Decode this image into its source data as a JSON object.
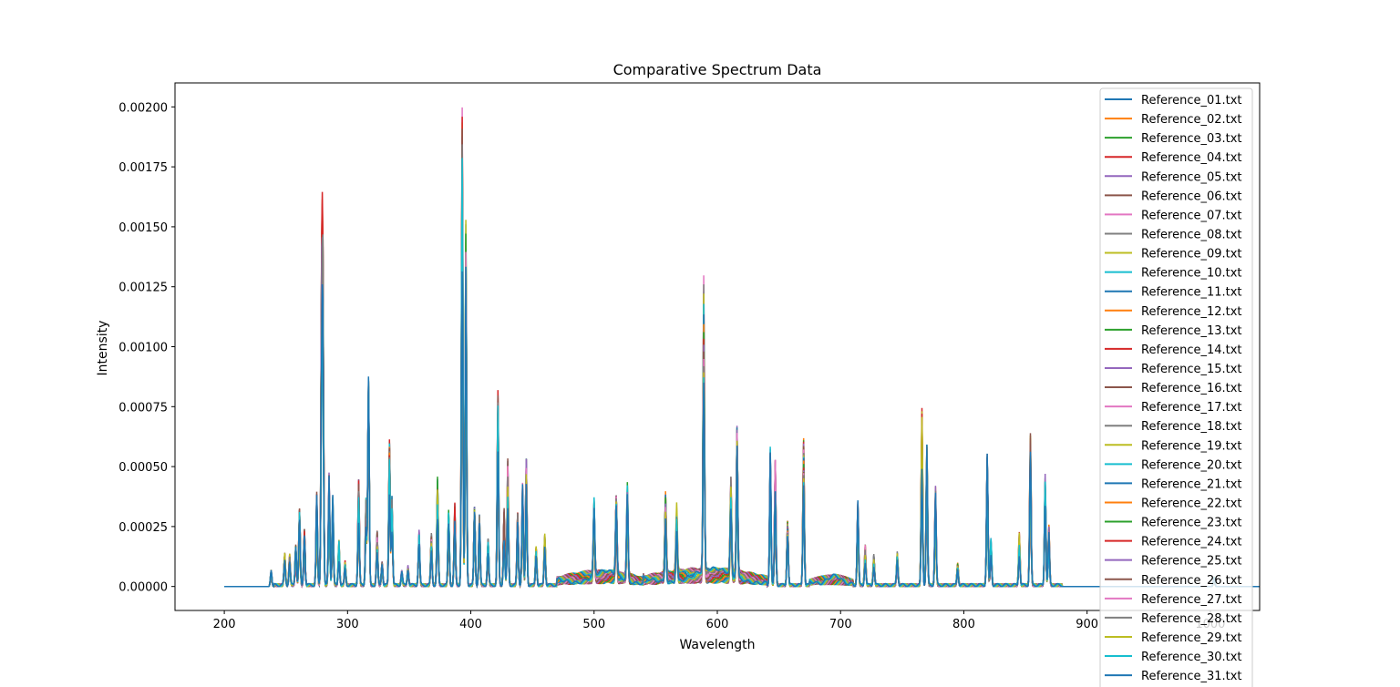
{
  "chart_data": {
    "type": "line",
    "title": "Comparative Spectrum Data",
    "xlabel": "Wavelength",
    "ylabel": "Intensity",
    "xlim": [
      160,
      1040
    ],
    "ylim": [
      -0.0001,
      0.0021
    ],
    "x_ticks": [
      200,
      300,
      400,
      500,
      600,
      700,
      800,
      900,
      1000
    ],
    "x_tick_labels": [
      "200",
      "300",
      "400",
      "500",
      "600",
      "700",
      "800",
      "900",
      "1000"
    ],
    "y_ticks": [
      0.0,
      0.00025,
      0.0005,
      0.00075,
      0.001,
      0.00125,
      0.0015,
      0.00175,
      0.002
    ],
    "y_tick_labels": [
      "0.00000",
      "0.00025",
      "0.00050",
      "0.00075",
      "0.00100",
      "0.00125",
      "0.00150",
      "0.00175",
      "0.00200"
    ],
    "grid": false,
    "legend_position": "upper-right",
    "series_colors": [
      "#1f77b4",
      "#ff7f0e",
      "#2ca02c",
      "#d62728",
      "#9467bd",
      "#8c564b",
      "#e377c2",
      "#7f7f7f",
      "#bcbd22",
      "#17becf"
    ],
    "series": [
      {
        "name": "Reference_01.txt"
      },
      {
        "name": "Reference_02.txt"
      },
      {
        "name": "Reference_03.txt"
      },
      {
        "name": "Reference_04.txt"
      },
      {
        "name": "Reference_05.txt"
      },
      {
        "name": "Reference_06.txt"
      },
      {
        "name": "Reference_07.txt"
      },
      {
        "name": "Reference_08.txt"
      },
      {
        "name": "Reference_09.txt"
      },
      {
        "name": "Reference_10.txt"
      },
      {
        "name": "Reference_11.txt"
      },
      {
        "name": "Reference_12.txt"
      },
      {
        "name": "Reference_13.txt"
      },
      {
        "name": "Reference_14.txt"
      },
      {
        "name": "Reference_15.txt"
      },
      {
        "name": "Reference_16.txt"
      },
      {
        "name": "Reference_17.txt"
      },
      {
        "name": "Reference_18.txt"
      },
      {
        "name": "Reference_19.txt"
      },
      {
        "name": "Reference_20.txt"
      },
      {
        "name": "Reference_21.txt"
      },
      {
        "name": "Reference_22.txt"
      },
      {
        "name": "Reference_23.txt"
      },
      {
        "name": "Reference_24.txt"
      },
      {
        "name": "Reference_25.txt"
      },
      {
        "name": "Reference_26.txt"
      },
      {
        "name": "Reference_27.txt"
      },
      {
        "name": "Reference_28.txt"
      },
      {
        "name": "Reference_29.txt"
      },
      {
        "name": "Reference_30.txt"
      },
      {
        "name": "Reference_31.txt"
      }
    ],
    "wavelength_range": [
      200,
      1040
    ],
    "spectral_peaks": [
      {
        "x": 238,
        "y": 7e-05
      },
      {
        "x": 249,
        "y": 0.00014
      },
      {
        "x": 253,
        "y": 0.00013
      },
      {
        "x": 258,
        "y": 0.00017
      },
      {
        "x": 261,
        "y": 0.00033
      },
      {
        "x": 265,
        "y": 0.00024
      },
      {
        "x": 275,
        "y": 0.00039
      },
      {
        "x": 279,
        "y": 0.0012
      },
      {
        "x": 280,
        "y": 0.00129
      },
      {
        "x": 285,
        "y": 0.00047
      },
      {
        "x": 288,
        "y": 0.00038
      },
      {
        "x": 293,
        "y": 0.00019
      },
      {
        "x": 298,
        "y": 0.0001
      },
      {
        "x": 309,
        "y": 0.00045
      },
      {
        "x": 315,
        "y": 0.00037
      },
      {
        "x": 317,
        "y": 0.0009
      },
      {
        "x": 324,
        "y": 0.00023
      },
      {
        "x": 328,
        "y": 0.0001
      },
      {
        "x": 334,
        "y": 0.00061
      },
      {
        "x": 336,
        "y": 0.00038
      },
      {
        "x": 344,
        "y": 6e-05
      },
      {
        "x": 349,
        "y": 8e-05
      },
      {
        "x": 358,
        "y": 0.00023
      },
      {
        "x": 368,
        "y": 0.00022
      },
      {
        "x": 373,
        "y": 0.00045
      },
      {
        "x": 382,
        "y": 0.00031
      },
      {
        "x": 387,
        "y": 0.00035
      },
      {
        "x": 393,
        "y": 0.002
      },
      {
        "x": 396,
        "y": 0.00155
      },
      {
        "x": 403,
        "y": 0.00037
      },
      {
        "x": 407,
        "y": 0.0003
      },
      {
        "x": 414,
        "y": 0.0002
      },
      {
        "x": 422,
        "y": 0.00082
      },
      {
        "x": 427,
        "y": 0.00032
      },
      {
        "x": 430,
        "y": 0.00053
      },
      {
        "x": 438,
        "y": 0.00032
      },
      {
        "x": 442,
        "y": 0.00044
      },
      {
        "x": 445,
        "y": 0.00055
      },
      {
        "x": 453,
        "y": 0.00017
      },
      {
        "x": 460,
        "y": 0.00022
      },
      {
        "x": 500,
        "y": 0.00034
      },
      {
        "x": 518,
        "y": 0.00037
      },
      {
        "x": 527,
        "y": 0.00039
      },
      {
        "x": 558,
        "y": 0.00035
      },
      {
        "x": 567,
        "y": 0.00029
      },
      {
        "x": 589,
        "y": 0.00128
      },
      {
        "x": 611,
        "y": 0.0004
      },
      {
        "x": 616,
        "y": 0.00066
      },
      {
        "x": 643,
        "y": 0.00058
      },
      {
        "x": 647,
        "y": 0.00053
      },
      {
        "x": 657,
        "y": 0.00028
      },
      {
        "x": 670,
        "y": 0.00062
      },
      {
        "x": 714,
        "y": 0.00036
      },
      {
        "x": 720,
        "y": 0.00017
      },
      {
        "x": 727,
        "y": 0.00013
      },
      {
        "x": 746,
        "y": 0.00014
      },
      {
        "x": 766,
        "y": 0.00076
      },
      {
        "x": 770,
        "y": 0.00061
      },
      {
        "x": 777,
        "y": 0.00042
      },
      {
        "x": 795,
        "y": 9e-05
      },
      {
        "x": 819,
        "y": 0.00055
      },
      {
        "x": 822,
        "y": 0.0002
      },
      {
        "x": 845,
        "y": 0.00022
      },
      {
        "x": 854,
        "y": 0.00064
      },
      {
        "x": 866,
        "y": 0.00047
      },
      {
        "x": 869,
        "y": 0.00025
      },
      {
        "x": 1003,
        "y": 4e-05
      }
    ],
    "continuum_bands": [
      {
        "from": 470,
        "to": 540,
        "y": 6e-05
      },
      {
        "from": 540,
        "to": 640,
        "y": 7e-05
      },
      {
        "from": 675,
        "to": 710,
        "y": 4e-05
      }
    ]
  }
}
